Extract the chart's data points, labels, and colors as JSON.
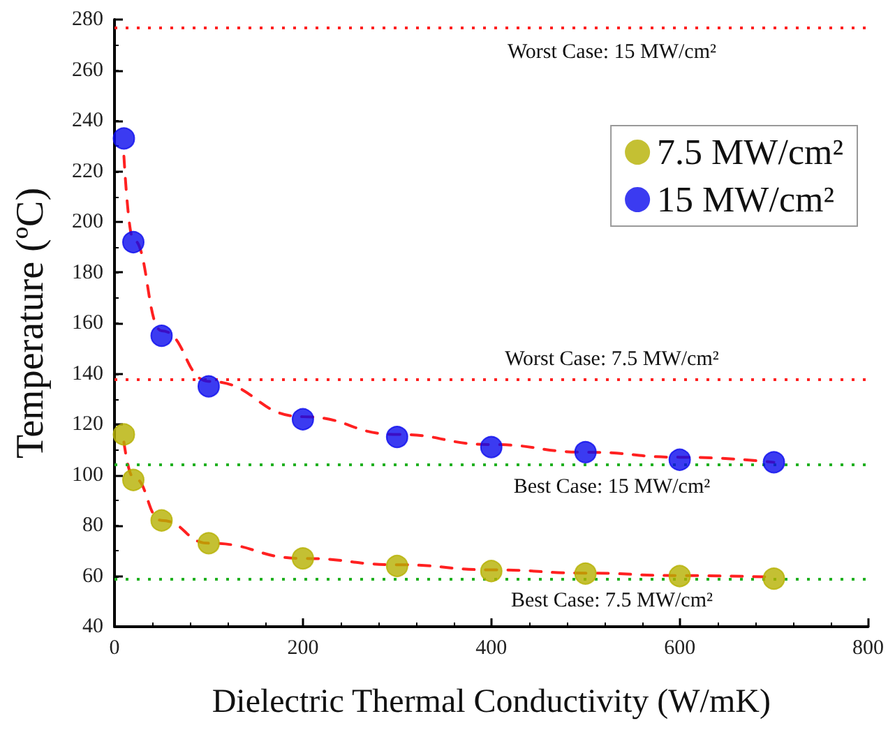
{
  "chart_data": {
    "type": "scatter",
    "xlabel": "Dielectric Thermal Conductivity (W/mK)",
    "ylabel": "Temperature (ºC)",
    "xlim": [
      0,
      800
    ],
    "xticks": [
      0,
      200,
      400,
      600,
      800
    ],
    "ylim": [
      40,
      280
    ],
    "yticks": [
      40,
      60,
      80,
      100,
      120,
      140,
      160,
      180,
      200,
      220,
      240,
      260,
      280
    ],
    "grid": false,
    "legend": "top right",
    "marker": "circle",
    "series": [
      {
        "name": "7.5 MW/cm²",
        "color": "#b5b000",
        "x": [
          10,
          20,
          50,
          100,
          200,
          300,
          400,
          500,
          600,
          700
        ],
        "values": [
          116,
          98,
          82,
          73,
          67,
          64,
          62,
          61,
          60,
          59
        ]
      },
      {
        "name": "15 MW/cm²",
        "color": "#0a0aee",
        "x": [
          10,
          20,
          50,
          100,
          200,
          300,
          400,
          500,
          600,
          700
        ],
        "values": [
          233,
          192,
          155,
          135,
          122,
          115,
          111,
          109,
          106,
          105
        ]
      },
      {
        "type": "line",
        "color": "#ff2020",
        "line_style": "dashed",
        "marker": "none",
        "x": [
          10,
          20,
          50,
          100,
          200,
          300,
          400,
          500,
          600,
          700
        ],
        "values": [
          113,
          99,
          82,
          73,
          67,
          64.5,
          62.5,
          61.2,
          60.2,
          59.6
        ]
      },
      {
        "type": "line",
        "color": "#ff2020",
        "line_style": "dashed",
        "marker": "none",
        "x": [
          10,
          20,
          50,
          100,
          200,
          300,
          400,
          500,
          600,
          700
        ],
        "values": [
          226,
          193,
          157,
          137,
          123,
          116,
          112,
          109,
          107,
          105
        ]
      }
    ],
    "annotations": [
      "Worst Case: 15 MW/cm²",
      "Worst Case: 7.5 MW/cm²",
      "Best Case: 15 MW/cm²",
      "Best Case: 7.5 MW/cm²"
    ],
    "ref_lines": [
      {
        "axis": "y",
        "value": 277,
        "color": "#ff2020",
        "line_style": "dotted"
      },
      {
        "axis": "y",
        "value": 138,
        "color": "#ff2020",
        "line_style": "dotted"
      },
      {
        "axis": "y",
        "value": 104,
        "color": "#20b020",
        "line_style": "dotted"
      },
      {
        "axis": "y",
        "value": 59,
        "color": "#20b020",
        "line_style": "dotted"
      }
    ]
  }
}
